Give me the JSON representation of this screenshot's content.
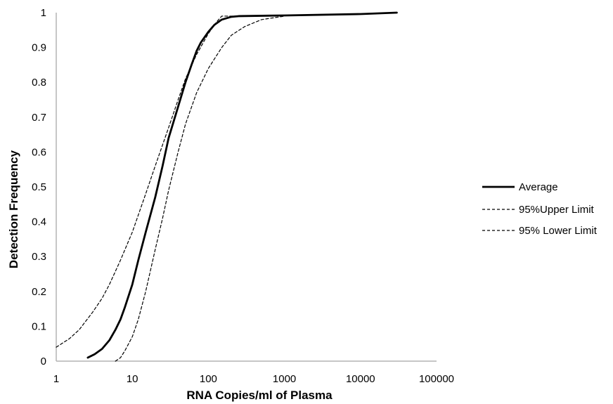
{
  "chart_data": {
    "type": "line",
    "title": "",
    "xlabel": "RNA Copies/ml of Plasma",
    "ylabel": "Detection Frequency",
    "xscale": "log",
    "xlim": [
      1,
      100000
    ],
    "ylim": [
      0,
      1
    ],
    "x_ticks": [
      "1",
      "10",
      "100",
      "1000",
      "10000",
      "100000"
    ],
    "y_ticks": [
      "0",
      "0.1",
      "0.2",
      "0.3",
      "0.4",
      "0.5",
      "0.6",
      "0.7",
      "0.8",
      "0.9",
      "1"
    ],
    "grid": false,
    "legend_position": "right",
    "series": [
      {
        "name": "Average",
        "style": "solid",
        "color": "#000000",
        "points": [
          [
            2.6,
            0.01
          ],
          [
            3.2,
            0.02
          ],
          [
            4,
            0.035
          ],
          [
            5,
            0.06
          ],
          [
            6,
            0.09
          ],
          [
            7,
            0.12
          ],
          [
            8,
            0.155
          ],
          [
            10,
            0.22
          ],
          [
            12,
            0.29
          ],
          [
            15,
            0.37
          ],
          [
            20,
            0.47
          ],
          [
            25,
            0.56
          ],
          [
            30,
            0.64
          ],
          [
            40,
            0.73
          ],
          [
            50,
            0.8
          ],
          [
            60,
            0.85
          ],
          [
            70,
            0.89
          ],
          [
            80,
            0.915
          ],
          [
            100,
            0.945
          ],
          [
            120,
            0.965
          ],
          [
            150,
            0.98
          ],
          [
            200,
            0.988
          ],
          [
            250,
            0.99
          ],
          [
            1000,
            0.992
          ],
          [
            10000,
            0.996
          ],
          [
            30000,
            1.0
          ]
        ]
      },
      {
        "name": "95%Upper Limit",
        "style": "dashed",
        "color": "#000000",
        "points": [
          [
            1,
            0.04
          ],
          [
            1.5,
            0.065
          ],
          [
            2,
            0.09
          ],
          [
            3,
            0.14
          ],
          [
            4,
            0.18
          ],
          [
            5,
            0.22
          ],
          [
            7,
            0.29
          ],
          [
            10,
            0.37
          ],
          [
            15,
            0.48
          ],
          [
            20,
            0.56
          ],
          [
            30,
            0.67
          ],
          [
            40,
            0.75
          ],
          [
            50,
            0.81
          ],
          [
            70,
            0.88
          ],
          [
            100,
            0.94
          ],
          [
            130,
            0.975
          ],
          [
            150,
            0.99
          ],
          [
            200,
            0.99
          ],
          [
            500,
            0.99
          ],
          [
            1000,
            0.992
          ]
        ]
      },
      {
        "name": "95% Lower Limit",
        "style": "dashed",
        "color": "#000000",
        "points": [
          [
            6,
            0.0
          ],
          [
            7,
            0.01
          ],
          [
            8,
            0.03
          ],
          [
            10,
            0.07
          ],
          [
            12,
            0.12
          ],
          [
            15,
            0.2
          ],
          [
            20,
            0.32
          ],
          [
            25,
            0.41
          ],
          [
            30,
            0.49
          ],
          [
            40,
            0.6
          ],
          [
            50,
            0.68
          ],
          [
            70,
            0.77
          ],
          [
            100,
            0.84
          ],
          [
            150,
            0.9
          ],
          [
            200,
            0.935
          ],
          [
            300,
            0.96
          ],
          [
            500,
            0.98
          ],
          [
            1000,
            0.99
          ]
        ]
      }
    ]
  }
}
